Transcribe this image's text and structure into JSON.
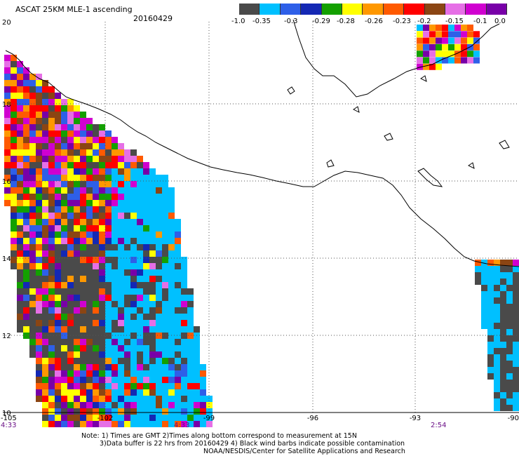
{
  "map": {
    "title": "ASCAT 25KM MLE-1 ascending",
    "date": "20160429",
    "longitude_labels": [
      "-105",
      "-102",
      "-99",
      "-96",
      "-93",
      "-90"
    ],
    "latitude_labels": [
      "20",
      "18",
      "16",
      "14",
      "12",
      "10"
    ],
    "times": [
      "4:33",
      "4:33",
      "2:54"
    ]
  },
  "colorbar": {
    "colors": [
      "#4a4a4a",
      "#00c0ff",
      "#2e5fe8",
      "#1428b4",
      "#13a000",
      "#ffff00",
      "#ff9800",
      "#ff5a00",
      "#ff0000",
      "#8b4513",
      "#e66fe6",
      "#d000d0",
      "#7800a8"
    ],
    "tick_labels": [
      "-1.0",
      "-0.35",
      "-0.3",
      "-0.29",
      "-0.28",
      "-0.26",
      "-0.23",
      "-0.2",
      "-0.15",
      "-0.1",
      "0.0"
    ]
  },
  "notes": {
    "line1": "Note: 1) Times are GMT 2)Times along bottom correspond to measurement at 15N",
    "line2": "3)Data buffer is 22 hrs from 20160429 4) Black wind barbs indicate possible contamination",
    "line3": "NOAA/NESDIS/Center for Satellite Applications and Research"
  }
}
